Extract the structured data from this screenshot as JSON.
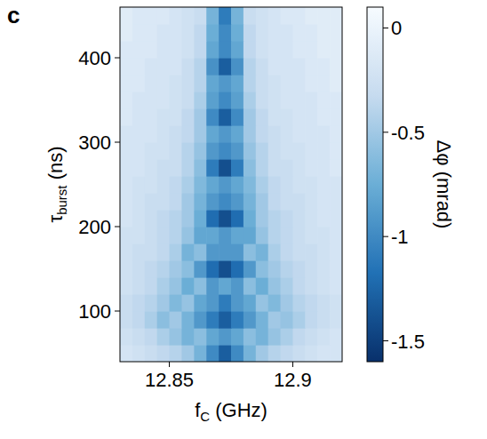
{
  "chart_data": {
    "type": "heatmap",
    "panel_label": "c",
    "xlabel": "fC (GHz)",
    "xlabel_sub": "C",
    "ylabel": "τburst (ns)",
    "ylabel_sub": "burst",
    "xlim": [
      12.83,
      12.92
    ],
    "ylim": [
      40,
      460
    ],
    "xticks": [
      12.85,
      12.9
    ],
    "yticks": [
      100,
      200,
      300,
      400
    ],
    "x": [
      12.8325,
      12.8375,
      12.8425,
      12.8475,
      12.8525,
      12.8575,
      12.8625,
      12.8675,
      12.8725,
      12.8775,
      12.8825,
      12.8875,
      12.8925,
      12.8975,
      12.9025,
      12.9075,
      12.9125,
      12.9175
    ],
    "y": [
      50,
      70,
      90,
      110,
      130,
      150,
      170,
      190,
      210,
      230,
      250,
      270,
      290,
      310,
      330,
      350,
      370,
      390,
      410,
      430,
      450
    ],
    "cells": [
      [
        -0.2,
        -0.25,
        -0.3,
        -0.35,
        -0.4,
        -0.5,
        -0.7,
        -1.0,
        -1.3,
        -1.0,
        -0.7,
        -0.5,
        -0.4,
        -0.35,
        -0.3,
        -0.25,
        -0.2,
        -0.2
      ],
      [
        -0.25,
        -0.3,
        -0.35,
        -0.45,
        -0.55,
        -0.7,
        -0.6,
        -0.8,
        -0.9,
        -0.8,
        -0.6,
        -0.7,
        -0.55,
        -0.45,
        -0.35,
        -0.3,
        -0.25,
        -0.2
      ],
      [
        -0.3,
        -0.35,
        -0.45,
        -0.6,
        -0.5,
        -0.7,
        -0.9,
        -1.1,
        -1.3,
        -1.1,
        -0.9,
        -0.7,
        -0.5,
        -0.55,
        -0.45,
        -0.35,
        -0.3,
        -0.25
      ],
      [
        -0.3,
        -0.35,
        -0.4,
        -0.5,
        -0.65,
        -0.55,
        -0.8,
        -0.9,
        -1.1,
        -0.9,
        -0.8,
        -0.55,
        -0.65,
        -0.5,
        -0.4,
        -0.35,
        -0.3,
        -0.25
      ],
      [
        -0.25,
        -0.3,
        -0.35,
        -0.45,
        -0.55,
        -0.75,
        -0.6,
        -0.9,
        -0.8,
        -0.9,
        -0.6,
        -0.75,
        -0.55,
        -0.45,
        -0.35,
        -0.3,
        -0.25,
        -0.2
      ],
      [
        -0.25,
        -0.3,
        -0.35,
        -0.4,
        -0.5,
        -0.6,
        -0.9,
        -1.2,
        -1.4,
        -1.2,
        -0.9,
        -0.6,
        -0.5,
        -0.4,
        -0.35,
        -0.3,
        -0.25,
        -0.2
      ],
      [
        -0.25,
        -0.3,
        -0.3,
        -0.35,
        -0.45,
        -0.7,
        -0.6,
        -0.9,
        -0.9,
        -0.9,
        -0.6,
        -0.7,
        -0.45,
        -0.35,
        -0.3,
        -0.3,
        -0.25,
        -0.2
      ],
      [
        -0.25,
        -0.25,
        -0.3,
        -0.35,
        -0.4,
        -0.55,
        -0.8,
        -0.8,
        -0.9,
        -0.8,
        -0.8,
        -0.55,
        -0.4,
        -0.35,
        -0.3,
        -0.25,
        -0.25,
        -0.2
      ],
      [
        -0.2,
        -0.25,
        -0.3,
        -0.35,
        -0.4,
        -0.5,
        -0.75,
        -1.2,
        -1.4,
        -1.2,
        -0.75,
        -0.5,
        -0.4,
        -0.35,
        -0.3,
        -0.25,
        -0.2,
        -0.2
      ],
      [
        -0.2,
        -0.25,
        -0.3,
        -0.3,
        -0.35,
        -0.5,
        -0.7,
        -0.9,
        -1.0,
        -0.9,
        -0.7,
        -0.5,
        -0.35,
        -0.3,
        -0.3,
        -0.25,
        -0.2,
        -0.2
      ],
      [
        -0.2,
        -0.25,
        -0.25,
        -0.3,
        -0.35,
        -0.45,
        -0.65,
        -0.8,
        -0.9,
        -0.8,
        -0.65,
        -0.45,
        -0.35,
        -0.3,
        -0.25,
        -0.25,
        -0.2,
        -0.2
      ],
      [
        -0.2,
        -0.2,
        -0.25,
        -0.3,
        -0.3,
        -0.4,
        -0.6,
        -1.1,
        -1.4,
        -1.1,
        -0.6,
        -0.4,
        -0.3,
        -0.3,
        -0.25,
        -0.2,
        -0.2,
        -0.15
      ],
      [
        -0.2,
        -0.2,
        -0.25,
        -0.25,
        -0.3,
        -0.4,
        -0.55,
        -0.9,
        -1.0,
        -0.9,
        -0.55,
        -0.4,
        -0.3,
        -0.25,
        -0.25,
        -0.2,
        -0.2,
        -0.15
      ],
      [
        -0.2,
        -0.2,
        -0.2,
        -0.25,
        -0.3,
        -0.35,
        -0.5,
        -0.8,
        -0.9,
        -0.8,
        -0.5,
        -0.35,
        -0.3,
        -0.25,
        -0.2,
        -0.2,
        -0.2,
        -0.15
      ],
      [
        -0.15,
        -0.2,
        -0.2,
        -0.25,
        -0.25,
        -0.35,
        -0.5,
        -1.0,
        -1.3,
        -1.0,
        -0.5,
        -0.35,
        -0.25,
        -0.25,
        -0.2,
        -0.2,
        -0.15,
        -0.15
      ],
      [
        -0.15,
        -0.2,
        -0.2,
        -0.2,
        -0.25,
        -0.3,
        -0.45,
        -0.85,
        -1.0,
        -0.85,
        -0.45,
        -0.3,
        -0.25,
        -0.2,
        -0.2,
        -0.2,
        -0.15,
        -0.15
      ],
      [
        -0.15,
        -0.15,
        -0.2,
        -0.2,
        -0.25,
        -0.3,
        -0.4,
        -0.8,
        -0.9,
        -0.8,
        -0.4,
        -0.3,
        -0.25,
        -0.2,
        -0.2,
        -0.15,
        -0.15,
        -0.1
      ],
      [
        -0.15,
        -0.15,
        -0.2,
        -0.2,
        -0.2,
        -0.3,
        -0.4,
        -0.95,
        -1.3,
        -0.95,
        -0.4,
        -0.3,
        -0.2,
        -0.2,
        -0.2,
        -0.15,
        -0.15,
        -0.1
      ],
      [
        -0.15,
        -0.15,
        -0.15,
        -0.2,
        -0.2,
        -0.25,
        -0.35,
        -0.8,
        -1.0,
        -0.8,
        -0.35,
        -0.25,
        -0.2,
        -0.2,
        -0.15,
        -0.15,
        -0.1,
        -0.1
      ],
      [
        -0.1,
        -0.15,
        -0.15,
        -0.2,
        -0.2,
        -0.25,
        -0.35,
        -0.75,
        -1.0,
        -0.75,
        -0.35,
        -0.25,
        -0.2,
        -0.2,
        -0.15,
        -0.15,
        -0.1,
        -0.1
      ],
      [
        -0.1,
        -0.15,
        -0.15,
        -0.15,
        -0.2,
        -0.25,
        -0.3,
        -0.7,
        -1.1,
        -0.7,
        -0.3,
        -0.25,
        -0.2,
        -0.15,
        -0.15,
        -0.1,
        -0.1,
        -0.1
      ]
    ],
    "colorbar": {
      "label": "Δφ (mrad)",
      "lim": [
        -1.6,
        0.1
      ],
      "ticks": [
        0,
        -0.5,
        -1,
        -1.5
      ]
    }
  }
}
